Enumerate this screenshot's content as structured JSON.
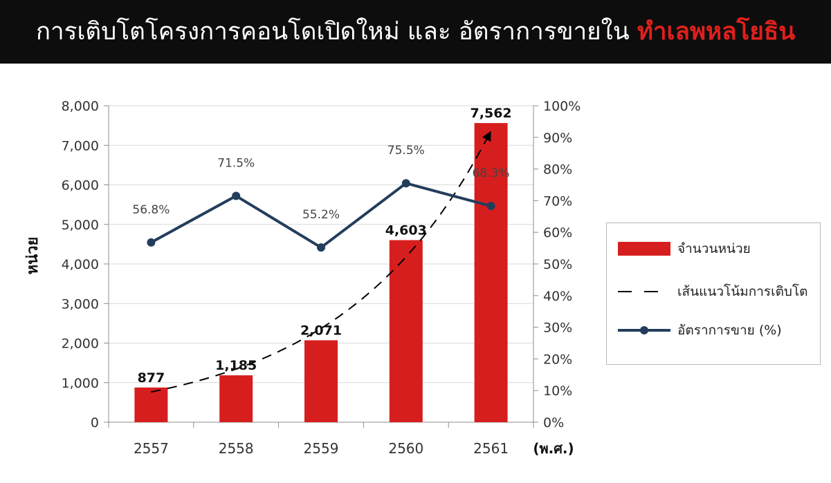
{
  "header": {
    "title_main": "การเติบโตโครงการคอนโดเปิดใหม่ และ อัตราการขายใน",
    "title_highlight": "ทำเลพหลโยธิน"
  },
  "colors": {
    "bar": "#d71e1e",
    "line": "#233d5c",
    "trend": "#000000",
    "header_bg": "#0d0d0d",
    "highlight": "#e0201c"
  },
  "chart_data": {
    "type": "bar",
    "categories": [
      "2557",
      "2558",
      "2559",
      "2560",
      "2561"
    ],
    "x_unit_label": "(พ.ศ.)",
    "ylabel": "หน่วย",
    "ylim": [
      0,
      8000
    ],
    "y_ticks": [
      "0",
      "1,000",
      "2,000",
      "3,000",
      "4,000",
      "5,000",
      "6,000",
      "7,000",
      "8,000"
    ],
    "y2lim": [
      0,
      100
    ],
    "y2_ticks": [
      "0%",
      "10%",
      "20%",
      "30%",
      "40%",
      "50%",
      "60%",
      "70%",
      "80%",
      "90%",
      "100%"
    ],
    "grid": true,
    "legend_position": "right",
    "series": [
      {
        "name": "จำนวนหน่วย",
        "kind": "bar",
        "axis": "left",
        "values": [
          877,
          1185,
          2071,
          4603,
          7562
        ],
        "labels": [
          "877",
          "1,185",
          "2,071",
          "4,603",
          "7,562"
        ]
      },
      {
        "name": "เส้นแนวโน้มการเติบโต",
        "kind": "trendline",
        "axis": "left"
      },
      {
        "name": "อัตราการขาย (%)",
        "kind": "line",
        "axis": "right",
        "values": [
          56.8,
          71.5,
          55.2,
          75.5,
          68.3
        ],
        "labels": [
          "56.8%",
          "71.5%",
          "55.2%",
          "75.5%",
          "68.3%"
        ]
      }
    ]
  }
}
